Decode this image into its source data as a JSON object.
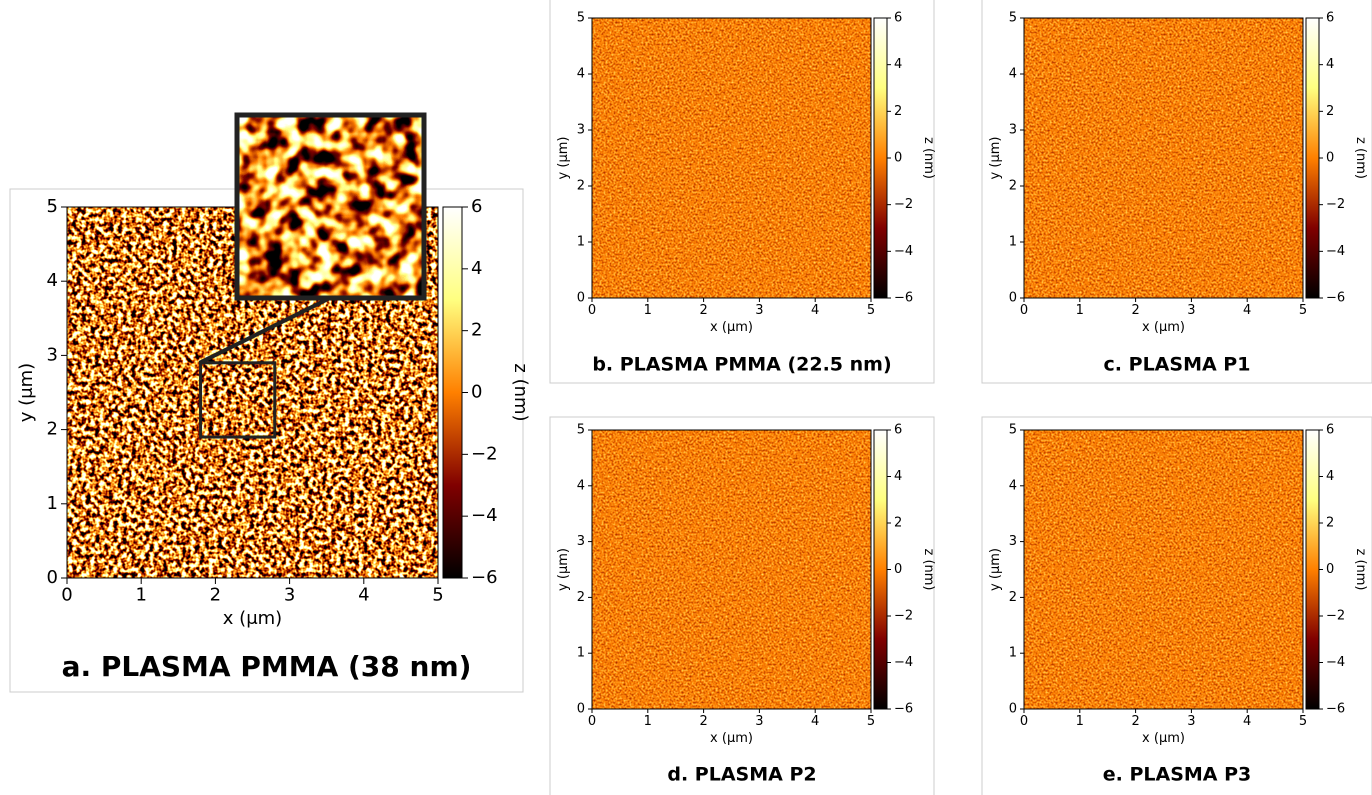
{
  "chart_data": [
    {
      "type": "heatmap",
      "title": "a. PLASMA PMMA (38 nm)",
      "xlabel": "x (μm)",
      "ylabel": "y (μm)",
      "colorbar_label": "z (nm)",
      "xlim": [
        0,
        5
      ],
      "ylim": [
        0,
        5
      ],
      "xticks": [
        0,
        1,
        2,
        3,
        4,
        5
      ],
      "yticks": [
        0,
        1,
        2,
        3,
        4,
        5
      ],
      "zlim": [
        -6,
        6
      ],
      "zticks": [
        {
          "value": -6,
          "label": "−6"
        },
        {
          "value": -4,
          "label": "−4"
        },
        {
          "value": -2,
          "label": "−2"
        },
        0,
        2,
        4,
        6
      ],
      "colormap": [
        "#000000",
        "#800000",
        "#ff8000",
        "#ffff80",
        "#ffffff"
      ],
      "inset": {
        "xlim": [
          1.8,
          2.8
        ],
        "ylim": [
          1.9,
          2.9
        ]
      }
    },
    {
      "type": "heatmap",
      "title": "b. PLASMA PMMA (22.5 nm)",
      "xlabel": "x (μm)",
      "ylabel": "y (μm)",
      "colorbar_label": "z (nm)",
      "xlim": [
        0,
        5
      ],
      "ylim": [
        0,
        5
      ],
      "xticks": [
        0,
        1,
        2,
        3,
        4,
        5
      ],
      "yticks": [
        0,
        1,
        2,
        3,
        4,
        5
      ],
      "zlim": [
        -6,
        6
      ],
      "zticks": [
        {
          "value": -6,
          "label": "−6"
        },
        {
          "value": -4,
          "label": "−4"
        },
        {
          "value": -2,
          "label": "−2"
        },
        0,
        2,
        4,
        6
      ],
      "colormap": [
        "#000000",
        "#800000",
        "#ff8000",
        "#ffff80",
        "#ffffff"
      ]
    },
    {
      "type": "heatmap",
      "title": "c. PLASMA P1",
      "xlabel": "x (μm)",
      "ylabel": "y (μm)",
      "colorbar_label": "z (nm)",
      "xlim": [
        0,
        5
      ],
      "ylim": [
        0,
        5
      ],
      "xticks": [
        0,
        1,
        2,
        3,
        4,
        5
      ],
      "yticks": [
        0,
        1,
        2,
        3,
        4,
        5
      ],
      "zlim": [
        -6,
        6
      ],
      "zticks": [
        {
          "value": -6,
          "label": "−6"
        },
        {
          "value": -4,
          "label": "−4"
        },
        {
          "value": -2,
          "label": "−2"
        },
        0,
        2,
        4,
        6
      ],
      "colormap": [
        "#000000",
        "#800000",
        "#ff8000",
        "#ffff80",
        "#ffffff"
      ]
    },
    {
      "type": "heatmap",
      "title": "d. PLASMA P2",
      "xlabel": "x (μm)",
      "ylabel": "y (μm)",
      "colorbar_label": "z (nm)",
      "xlim": [
        0,
        5
      ],
      "ylim": [
        0,
        5
      ],
      "xticks": [
        0,
        1,
        2,
        3,
        4,
        5
      ],
      "yticks": [
        0,
        1,
        2,
        3,
        4,
        5
      ],
      "zlim": [
        -6,
        6
      ],
      "zticks": [
        {
          "value": -6,
          "label": "−6"
        },
        {
          "value": -4,
          "label": "−4"
        },
        {
          "value": -2,
          "label": "−2"
        },
        0,
        2,
        4,
        6
      ],
      "colormap": [
        "#000000",
        "#800000",
        "#ff8000",
        "#ffff80",
        "#ffffff"
      ]
    },
    {
      "type": "heatmap",
      "title": "e. PLASMA P3",
      "xlabel": "x (μm)",
      "ylabel": "y (μm)",
      "colorbar_label": "z (nm)",
      "xlim": [
        0,
        5
      ],
      "ylim": [
        0,
        5
      ],
      "xticks": [
        0,
        1,
        2,
        3,
        4,
        5
      ],
      "yticks": [
        0,
        1,
        2,
        3,
        4,
        5
      ],
      "zlim": [
        -6,
        6
      ],
      "zticks": [
        {
          "value": -6,
          "label": "−6"
        },
        {
          "value": -4,
          "label": "−4"
        },
        {
          "value": -2,
          "label": "−2"
        },
        0,
        2,
        4,
        6
      ],
      "colormap": [
        "#000000",
        "#800000",
        "#ff8000",
        "#ffff80",
        "#ffffff"
      ]
    }
  ]
}
